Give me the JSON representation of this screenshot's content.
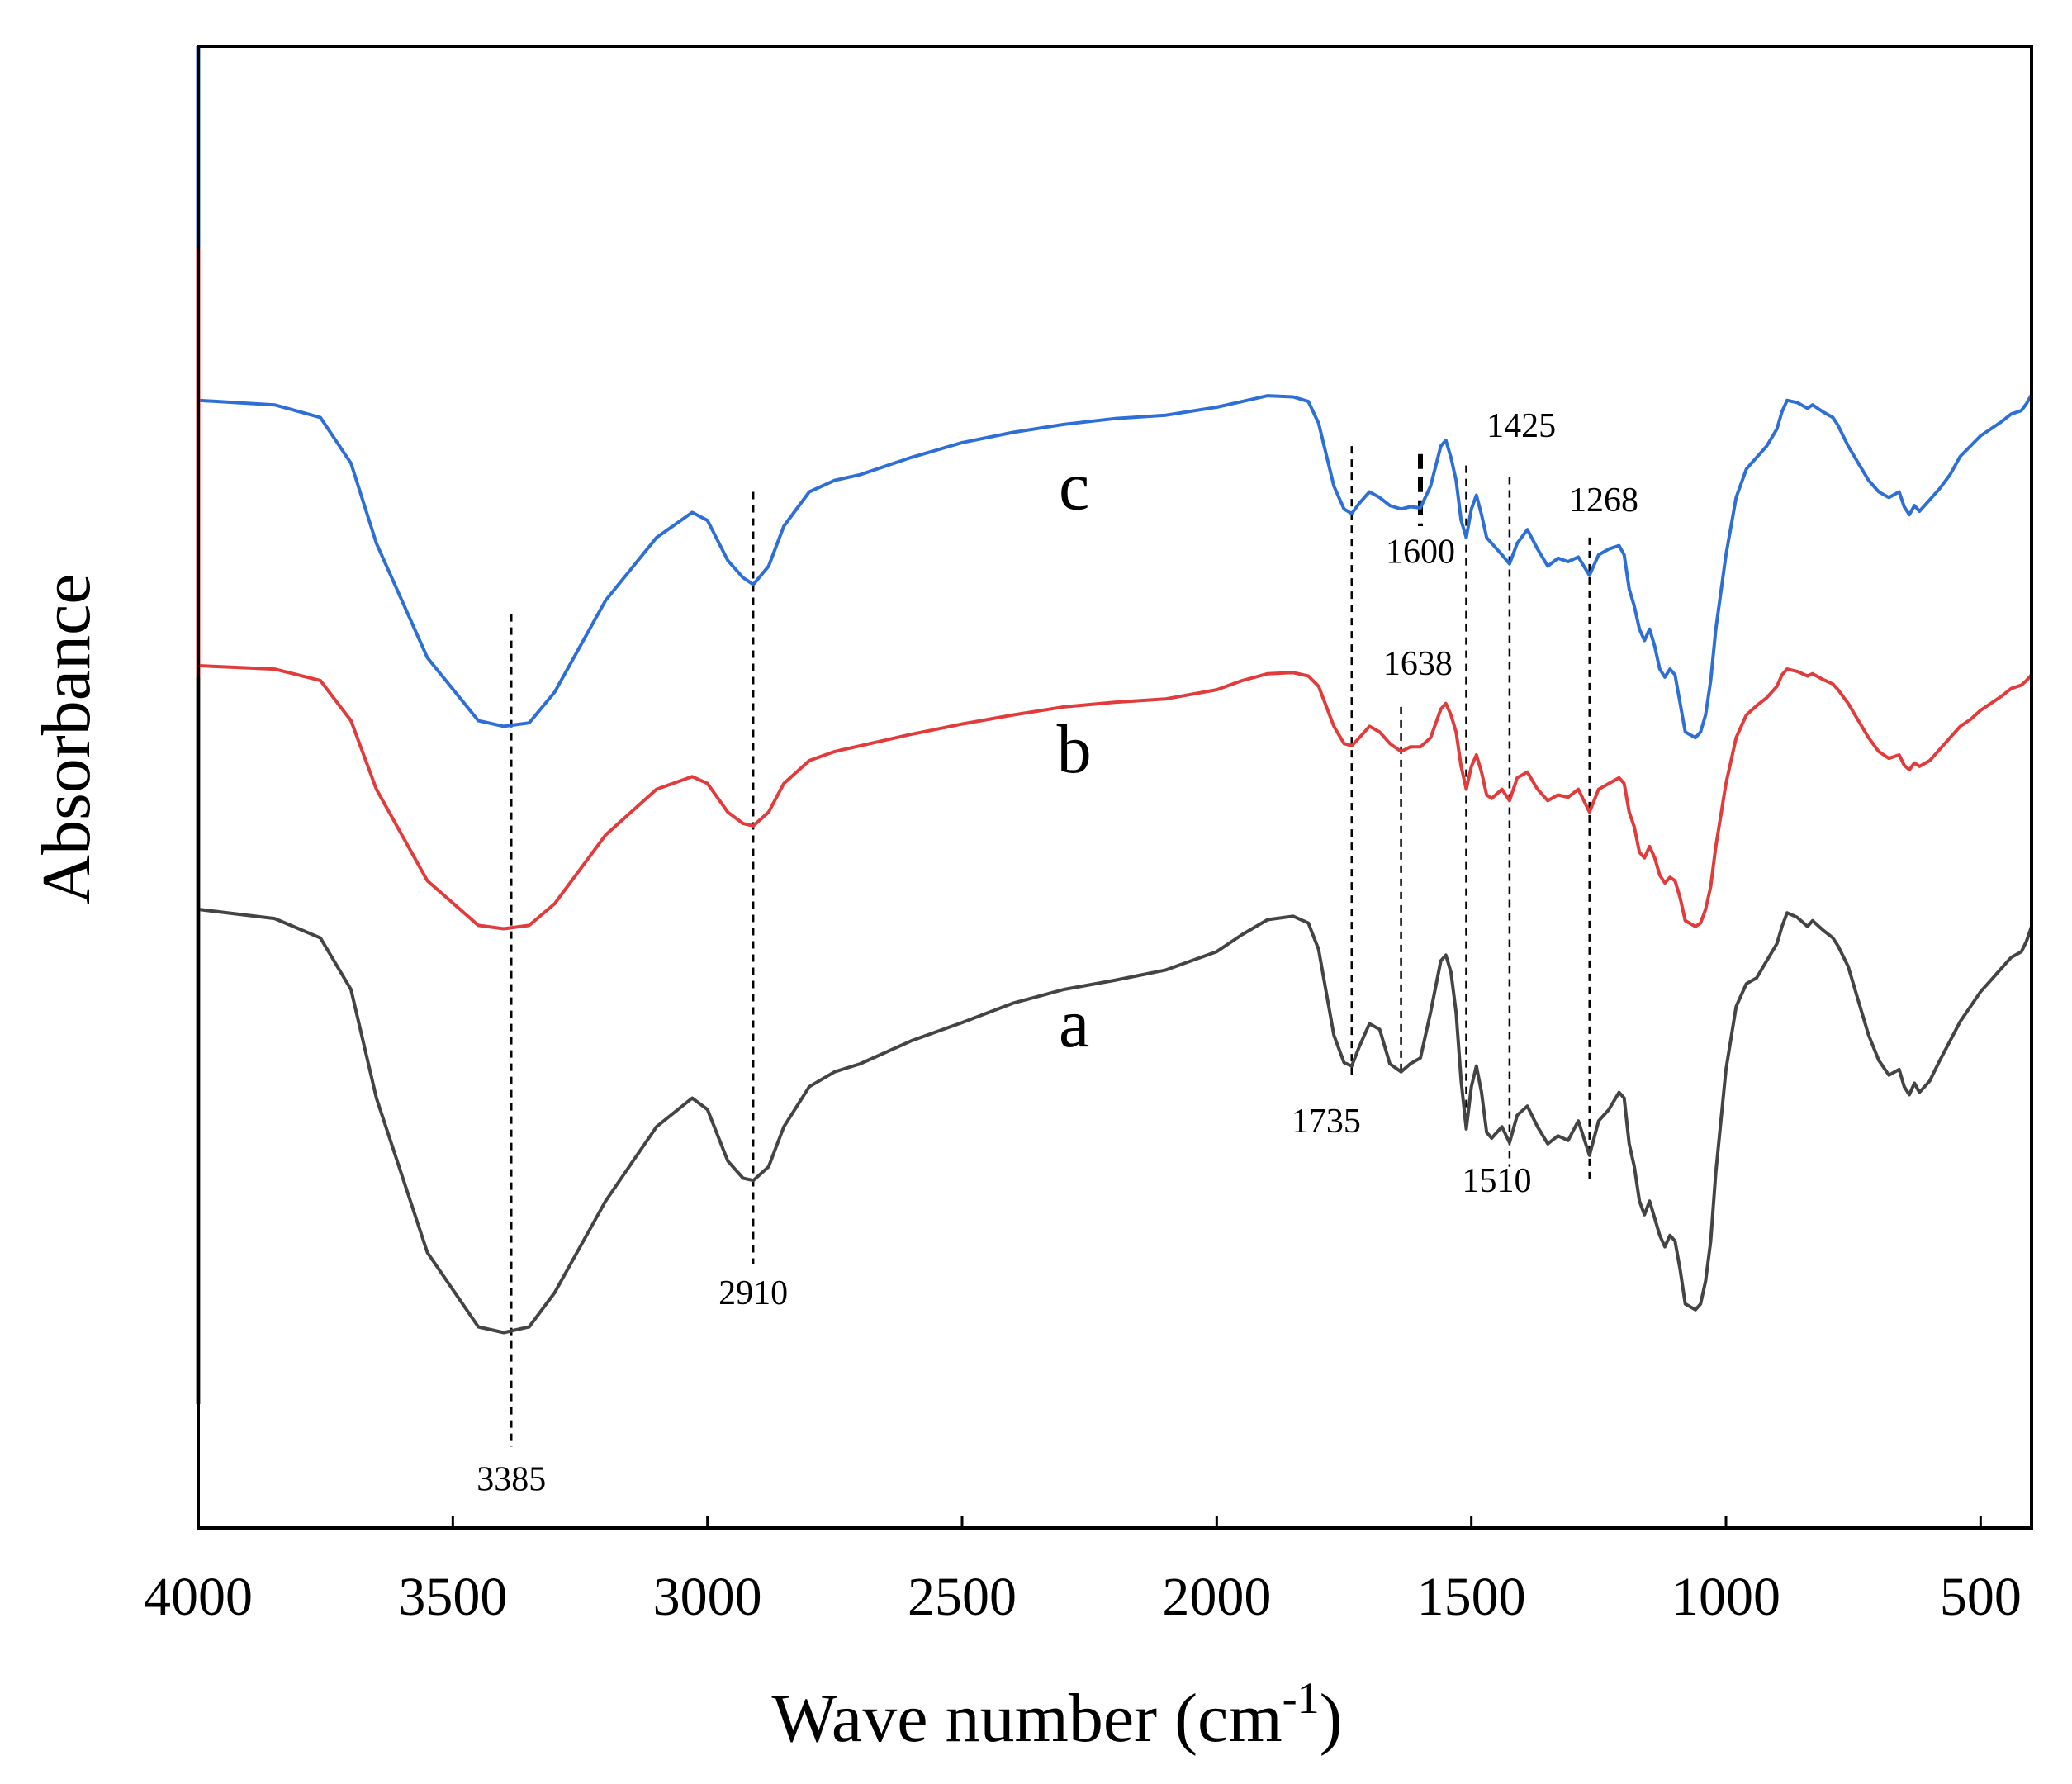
{
  "chart_data": {
    "type": "line",
    "title": "",
    "xlabel": "Wave number (cm",
    "xlabel_superscript": "-1",
    "xlabel_suffix": ")",
    "ylabel": "Absorbance",
    "xlim": [
      4000,
      400
    ],
    "x_reversed": true,
    "ylim": [
      0,
      100
    ],
    "y_ticks_shown": false,
    "x_ticks": [
      "4000",
      "3500",
      "3000",
      "2500",
      "2000",
      "1500",
      "1000",
      "500"
    ],
    "x_tick_values": [
      4000,
      3500,
      3000,
      2500,
      2000,
      1500,
      1000,
      500
    ],
    "grid": false,
    "legend": "none (series labelled inline)",
    "series": [
      {
        "name": "c",
        "color": "#2E6FD6",
        "label_at": [
          2280,
          75
        ],
        "x": [
          4000,
          3850,
          3760,
          3700,
          3650,
          3550,
          3450,
          3400,
          3350,
          3300,
          3200,
          3100,
          3030,
          3000,
          2960,
          2930,
          2910,
          2880,
          2850,
          2800,
          2750,
          2700,
          2600,
          2500,
          2400,
          2300,
          2200,
          2100,
          2000,
          1950,
          1900,
          1850,
          1820,
          1800,
          1770,
          1750,
          1735,
          1720,
          1700,
          1680,
          1660,
          1638,
          1620,
          1600,
          1580,
          1560,
          1550,
          1540,
          1530,
          1520,
          1510,
          1500,
          1490,
          1480,
          1470,
          1460,
          1440,
          1425,
          1410,
          1390,
          1370,
          1350,
          1330,
          1310,
          1290,
          1268,
          1250,
          1230,
          1210,
          1200,
          1190,
          1180,
          1170,
          1160,
          1150,
          1140,
          1130,
          1120,
          1110,
          1100,
          1090,
          1080,
          1060,
          1050,
          1040,
          1030,
          1020,
          1000,
          980,
          960,
          940,
          920,
          900,
          890,
          880,
          860,
          840,
          830,
          810,
          790,
          780,
          760,
          740,
          720,
          700,
          680,
          660,
          650,
          640,
          630,
          620,
          600,
          580,
          560,
          540,
          520,
          500,
          480,
          460,
          440,
          420,
          410,
          400
        ],
        "y": [
          84.5,
          84.1,
          83.0,
          79.0,
          72.0,
          62.0,
          56.5,
          56.0,
          56.3,
          59.0,
          67.0,
          72.5,
          74.7,
          74.0,
          70.5,
          69.0,
          68.4,
          70.0,
          73.5,
          76.5,
          77.5,
          78.0,
          79.5,
          80.8,
          81.7,
          82.4,
          82.9,
          83.2,
          83.9,
          84.4,
          84.9,
          84.8,
          84.4,
          82.5,
          77.0,
          75.0,
          74.6,
          75.5,
          76.5,
          76.0,
          75.3,
          75.0,
          75.2,
          75.1,
          77.0,
          80.5,
          81.0,
          79.5,
          77.5,
          74.0,
          72.5,
          75.0,
          76.2,
          74.5,
          72.5,
          72.0,
          71.0,
          70.2,
          72.0,
          73.2,
          71.5,
          70.0,
          70.7,
          70.4,
          70.8,
          69.2,
          71.0,
          71.5,
          71.8,
          71.0,
          68.0,
          66.5,
          64.5,
          63.5,
          64.5,
          63.0,
          61.0,
          60.3,
          61.0,
          60.5,
          58.0,
          55.5,
          55.0,
          55.5,
          57.0,
          60.0,
          64.5,
          71.0,
          76.0,
          78.5,
          79.5,
          80.5,
          82.0,
          83.5,
          84.5,
          84.3,
          83.8,
          84.1,
          83.5,
          83.0,
          82.3,
          80.5,
          79.0,
          77.5,
          76.5,
          76.0,
          76.5,
          75.2,
          74.5,
          75.3,
          74.8,
          75.8,
          76.8,
          78.0,
          79.6,
          80.5,
          81.4,
          82.0,
          82.6,
          83.3,
          83.6,
          84.2,
          85.0
        ]
      },
      {
        "name": "b",
        "color": "#E23B3B",
        "label_at": [
          2280,
          52
        ],
        "x": [
          4000,
          3850,
          3760,
          3700,
          3650,
          3550,
          3450,
          3400,
          3350,
          3300,
          3200,
          3100,
          3030,
          3000,
          2960,
          2930,
          2910,
          2880,
          2850,
          2800,
          2750,
          2700,
          2600,
          2500,
          2400,
          2300,
          2200,
          2100,
          2000,
          1950,
          1900,
          1850,
          1820,
          1800,
          1770,
          1750,
          1735,
          1720,
          1700,
          1680,
          1660,
          1638,
          1620,
          1600,
          1580,
          1560,
          1550,
          1540,
          1530,
          1520,
          1510,
          1500,
          1490,
          1480,
          1470,
          1460,
          1440,
          1425,
          1410,
          1390,
          1370,
          1350,
          1330,
          1310,
          1290,
          1268,
          1250,
          1230,
          1210,
          1200,
          1190,
          1180,
          1170,
          1160,
          1150,
          1140,
          1130,
          1120,
          1110,
          1100,
          1090,
          1080,
          1060,
          1050,
          1040,
          1030,
          1020,
          1000,
          980,
          960,
          940,
          920,
          900,
          890,
          880,
          860,
          840,
          830,
          810,
          790,
          780,
          760,
          740,
          720,
          700,
          680,
          660,
          650,
          640,
          630,
          620,
          600,
          580,
          560,
          540,
          520,
          500,
          480,
          460,
          440,
          420,
          410,
          400
        ],
        "y": [
          61.3,
          61.0,
          60.0,
          56.5,
          50.5,
          42.5,
          38.6,
          38.3,
          38.6,
          40.5,
          46.5,
          50.5,
          51.6,
          51.0,
          48.5,
          47.5,
          47.3,
          48.5,
          51.0,
          53.0,
          53.8,
          54.3,
          55.3,
          56.2,
          57.0,
          57.7,
          58.1,
          58.4,
          59.2,
          60.0,
          60.6,
          60.7,
          60.4,
          59.5,
          56.0,
          54.5,
          54.3,
          55.0,
          56.0,
          55.5,
          54.5,
          53.8,
          54.2,
          54.2,
          55.0,
          57.5,
          58.0,
          57.0,
          55.5,
          52.5,
          50.5,
          52.5,
          53.5,
          52.0,
          50.0,
          49.7,
          50.5,
          49.5,
          51.5,
          52.0,
          50.5,
          49.5,
          50.0,
          49.8,
          50.5,
          48.5,
          50.5,
          51.0,
          51.5,
          51.0,
          48.5,
          47.2,
          45.0,
          44.5,
          45.5,
          44.5,
          43.0,
          42.3,
          42.8,
          42.5,
          41.0,
          39.0,
          38.5,
          38.8,
          40.0,
          42.0,
          45.5,
          51.0,
          55.0,
          57.0,
          57.8,
          58.5,
          59.5,
          60.5,
          61.0,
          60.8,
          60.4,
          60.6,
          60.1,
          59.7,
          59.2,
          58.0,
          56.5,
          55.0,
          53.8,
          53.2,
          53.5,
          52.6,
          52.2,
          52.8,
          52.5,
          53.0,
          54.0,
          55.0,
          56.0,
          56.6,
          57.4,
          58.0,
          58.6,
          59.3,
          59.6,
          60.0,
          60.5
        ]
      },
      {
        "name": "a",
        "color": "#444444",
        "label_at": [
          2280,
          28
        ],
        "x": [
          4000,
          3850,
          3760,
          3700,
          3650,
          3550,
          3450,
          3400,
          3350,
          3300,
          3200,
          3100,
          3030,
          3000,
          2960,
          2930,
          2910,
          2880,
          2850,
          2800,
          2750,
          2700,
          2600,
          2500,
          2400,
          2300,
          2200,
          2100,
          2000,
          1950,
          1900,
          1850,
          1820,
          1800,
          1770,
          1750,
          1735,
          1720,
          1700,
          1680,
          1660,
          1638,
          1620,
          1600,
          1580,
          1560,
          1550,
          1540,
          1530,
          1520,
          1510,
          1500,
          1490,
          1480,
          1470,
          1460,
          1440,
          1425,
          1410,
          1390,
          1370,
          1350,
          1330,
          1310,
          1290,
          1268,
          1250,
          1230,
          1210,
          1200,
          1190,
          1180,
          1170,
          1160,
          1150,
          1140,
          1130,
          1120,
          1110,
          1100,
          1090,
          1080,
          1060,
          1050,
          1040,
          1030,
          1020,
          1000,
          980,
          960,
          940,
          920,
          900,
          890,
          880,
          860,
          840,
          830,
          810,
          790,
          780,
          760,
          740,
          720,
          700,
          680,
          660,
          650,
          640,
          630,
          620,
          600,
          580,
          560,
          540,
          520,
          500,
          480,
          460,
          440,
          420,
          410,
          400
        ],
        "y": [
          40.0,
          39.2,
          37.5,
          33.0,
          23.5,
          10.0,
          3.5,
          3.0,
          3.5,
          6.5,
          14.5,
          21.0,
          23.5,
          22.5,
          18.0,
          16.5,
          16.3,
          17.5,
          21.0,
          24.5,
          25.8,
          26.5,
          28.5,
          30.1,
          31.8,
          33.0,
          33.8,
          34.7,
          36.3,
          37.8,
          39.1,
          39.4,
          38.8,
          36.5,
          29.0,
          26.6,
          26.3,
          28.0,
          30.0,
          29.5,
          26.5,
          25.8,
          26.5,
          27.0,
          31.0,
          35.5,
          36.0,
          34.5,
          31.0,
          25.0,
          20.8,
          24.5,
          26.3,
          24.0,
          20.5,
          20.0,
          21.0,
          19.6,
          22.0,
          22.8,
          21.0,
          19.5,
          20.2,
          19.8,
          21.5,
          18.5,
          21.5,
          22.5,
          24.0,
          23.5,
          19.5,
          17.5,
          14.5,
          13.3,
          14.5,
          13.0,
          11.5,
          10.5,
          11.5,
          11.0,
          8.5,
          5.5,
          5.0,
          5.5,
          7.5,
          11.0,
          17.0,
          26.0,
          31.5,
          33.5,
          34.0,
          35.5,
          37.0,
          38.5,
          39.7,
          39.3,
          38.5,
          39.0,
          38.2,
          37.5,
          36.8,
          35.0,
          32.0,
          29.0,
          26.8,
          25.5,
          26.0,
          24.5,
          23.8,
          24.8,
          24.0,
          25.0,
          26.8,
          28.5,
          30.2,
          31.5,
          32.8,
          33.8,
          34.8,
          35.8,
          36.3,
          37.2,
          38.5
        ]
      }
    ],
    "guide_lines": [
      {
        "x": 3385,
        "from": "a",
        "to": "c",
        "y_top": 65.8,
        "y_bottom": -7.0,
        "bold": false
      },
      {
        "x": 2910,
        "from": "a",
        "to": "c",
        "y_top": 76.5,
        "y_bottom": 9.0,
        "bold": false
      },
      {
        "x": 1735,
        "from": "a",
        "to": "c",
        "y_top": 80.5,
        "y_bottom": 25.3,
        "bold": false
      },
      {
        "x": 1638,
        "from": "a",
        "to": "b",
        "y_top": 57.7,
        "y_bottom": 25.5,
        "bold": false
      },
      {
        "x": 1600,
        "from": "c",
        "to": "c",
        "y_top": 79.8,
        "y_bottom": 73.5,
        "bold": true
      },
      {
        "x": 1510,
        "from": "a",
        "to": "c",
        "y_top": 78.8,
        "y_bottom": 21.0,
        "bold": false
      },
      {
        "x": 1425,
        "from": "a",
        "to": "c",
        "y_top": 77.8,
        "y_bottom": 17.5,
        "bold": false
      },
      {
        "x": 1268,
        "from": "a",
        "to": "c",
        "y_top": 72.5,
        "y_bottom": 16.3,
        "bold": false
      }
    ],
    "annotations": [
      {
        "text": "3385",
        "x": 3385,
        "y": -10.8
      },
      {
        "text": "2910",
        "x": 2910,
        "y": 5.5
      },
      {
        "text": "1735",
        "x": 1785,
        "y": 20.5
      },
      {
        "text": "1510",
        "x": 1450,
        "y": 15.3
      },
      {
        "text": "1638",
        "x": 1605,
        "y": 60.5
      },
      {
        "text": "1600",
        "x": 1600,
        "y": 70.3
      },
      {
        "text": "1425",
        "x": 1402,
        "y": 81.3
      },
      {
        "text": "1268",
        "x": 1240,
        "y": 74.8
      }
    ]
  }
}
